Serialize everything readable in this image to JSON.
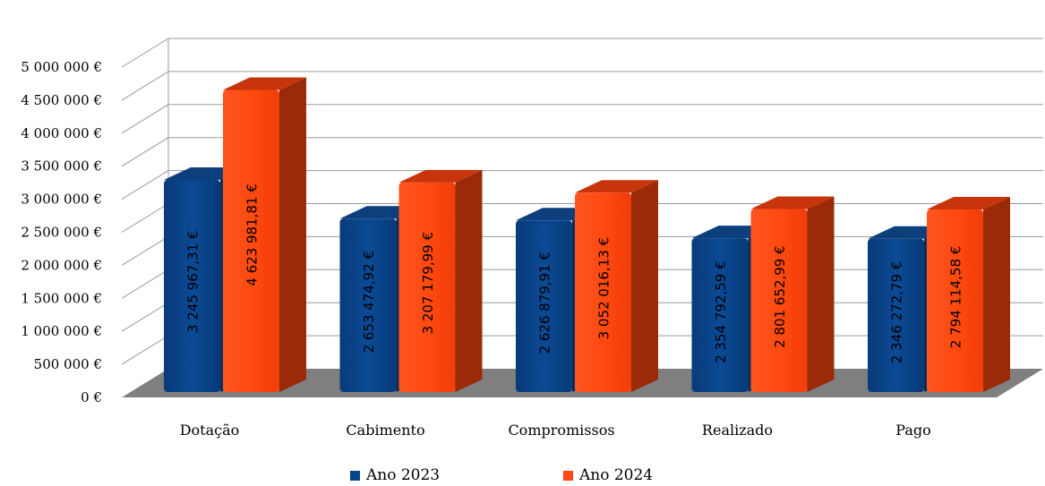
{
  "chart_data": {
    "type": "bar",
    "categories": [
      "Dotação",
      "Cabimento",
      "Compromissos",
      "Realizado",
      "Pago"
    ],
    "series": [
      {
        "name": "Ano 2023",
        "color": "#06458e",
        "values": [
          3245967.31,
          2653474.92,
          2626879.91,
          2354792.59,
          2346272.79
        ],
        "labels": [
          "3 245 967,31 €",
          "2 653 474,92 €",
          "2 626 879,91 €",
          "2 354 792,59 €",
          "2 346 272,79 €"
        ]
      },
      {
        "name": "Ano 2024",
        "color": "#ff4714",
        "values": [
          4623981.81,
          3207179.99,
          3052016.13,
          2801652.99,
          2794114.58
        ],
        "labels": [
          "4 623 981,81 €",
          "3 207 179,99 €",
          "3 052 016,13 €",
          "2 801 652,99 €",
          "2 794 114,58 €"
        ]
      }
    ],
    "ylim": [
      0,
      5000000
    ],
    "yticks": [
      0,
      500000,
      1000000,
      1500000,
      2000000,
      2500000,
      3000000,
      3500000,
      4000000,
      4500000,
      5000000
    ],
    "ytick_labels": [
      "0 €",
      "500 000 €",
      "1 000 000 €",
      "1 500 000 €",
      "2 000 000 €",
      "2 500 000 €",
      "3 000 000 €",
      "3 500 000 €",
      "4 000 000 €",
      "4 500 000 €",
      "5 000 000 €"
    ],
    "grid": true,
    "legend_position": "bottom",
    "style": "3d-column"
  }
}
